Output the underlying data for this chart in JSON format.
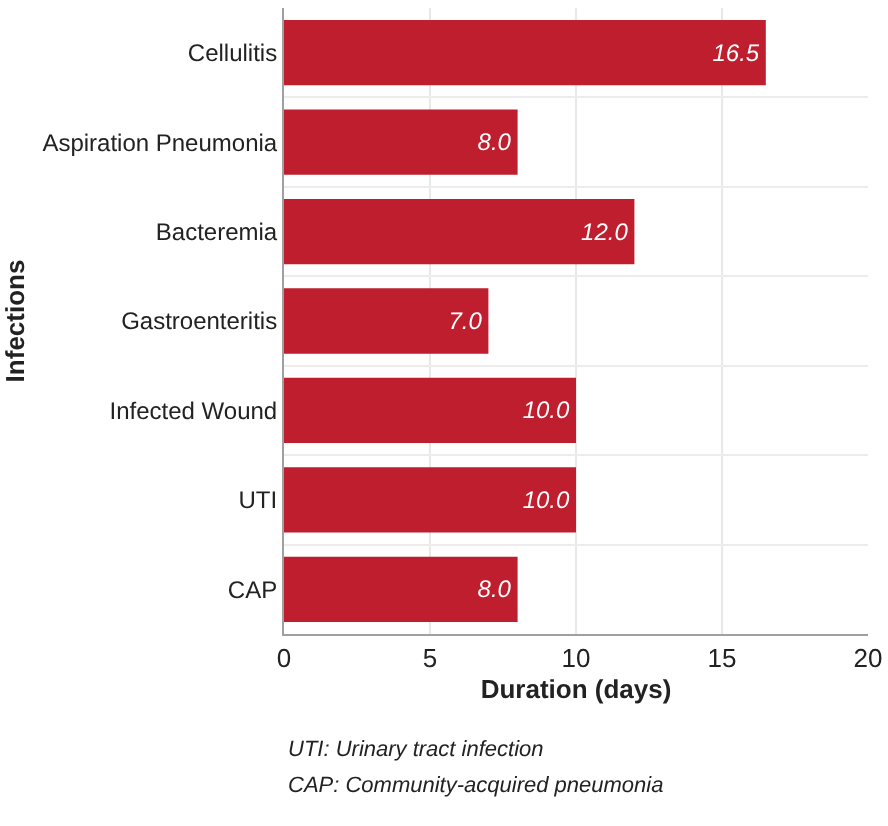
{
  "chart_data": {
    "type": "bar",
    "orientation": "horizontal",
    "categories": [
      "Cellulitis",
      "Aspiration Pneumonia",
      "Bacteremia",
      "Gastroenteritis",
      "Infected Wound",
      "UTI",
      "CAP"
    ],
    "values": [
      16.5,
      8,
      12,
      7,
      10,
      10,
      8
    ],
    "value_labels": [
      "16.5",
      "8.0",
      "12.0",
      "7.0",
      "10.0",
      "10.0",
      "8.0"
    ],
    "color": "#be1e2d",
    "xlabel": "Duration (days)",
    "ylabel": "Infections",
    "xlim": [
      0,
      20
    ],
    "xticks": [
      0,
      5,
      10,
      15,
      20
    ],
    "grid": true,
    "annotations": [
      "UTI: Urinary tract infection",
      "CAP: Community-acquired pneumonia"
    ]
  }
}
